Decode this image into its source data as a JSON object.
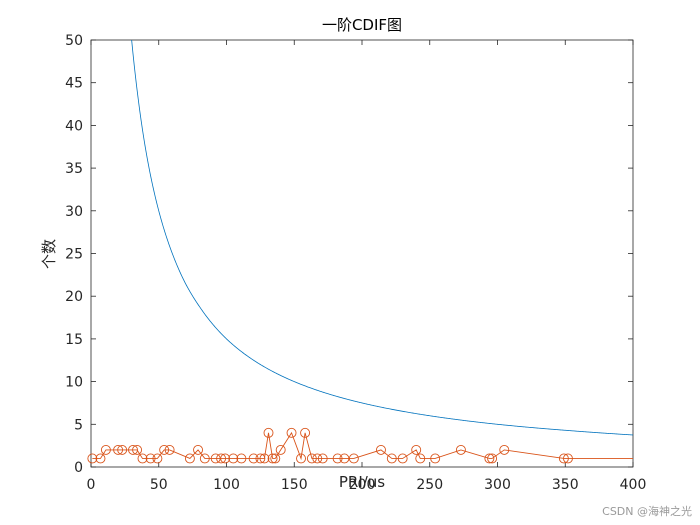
{
  "chart_data": {
    "type": "line",
    "title": "一阶CDIF图",
    "xlabel": "PRI/us",
    "ylabel": "个数",
    "xlim": [
      0,
      400
    ],
    "ylim": [
      0,
      50
    ],
    "xticks": [
      0,
      50,
      100,
      150,
      200,
      250,
      300,
      350,
      400
    ],
    "yticks": [
      0,
      5,
      10,
      15,
      20,
      25,
      30,
      35,
      40,
      45,
      50
    ],
    "grid": false,
    "series": [
      {
        "kind": "threshold_curve",
        "color": "#0072BD",
        "formula": "y = 1500 / x",
        "x": [
          30,
          35,
          40,
          50,
          60,
          70,
          80,
          100,
          120,
          150,
          200,
          250,
          300,
          350,
          400
        ],
        "values": [
          50,
          42.9,
          37.5,
          30,
          25,
          21.4,
          18.8,
          15,
          12.5,
          10,
          7.5,
          6,
          5,
          4.3,
          3.75
        ]
      },
      {
        "kind": "cdif_counts",
        "color": "#D95319",
        "marker": "circle",
        "x": [
          1,
          7,
          11,
          20,
          23,
          31,
          34,
          38,
          44,
          49,
          54,
          58,
          73,
          79,
          84,
          92,
          96,
          99,
          105,
          111,
          120,
          125,
          128,
          131,
          134,
          136,
          140,
          148,
          155,
          158,
          163,
          167,
          171,
          182,
          187,
          194,
          214,
          222,
          230,
          240,
          243,
          254,
          273,
          294,
          296,
          305,
          349,
          352,
          400
        ],
        "values": [
          1,
          1,
          2,
          2,
          2,
          2,
          2,
          1,
          1,
          1,
          2,
          2,
          1,
          2,
          1,
          1,
          1,
          1,
          1,
          1,
          1,
          1,
          1,
          4,
          1,
          1,
          2,
          4,
          1,
          4,
          1,
          1,
          1,
          1,
          1,
          1,
          2,
          1,
          1,
          2,
          1,
          1,
          2,
          1,
          1,
          2,
          1,
          1,
          1
        ],
        "last_point_marker": false
      }
    ]
  },
  "watermark": "CSDN @海神之光"
}
